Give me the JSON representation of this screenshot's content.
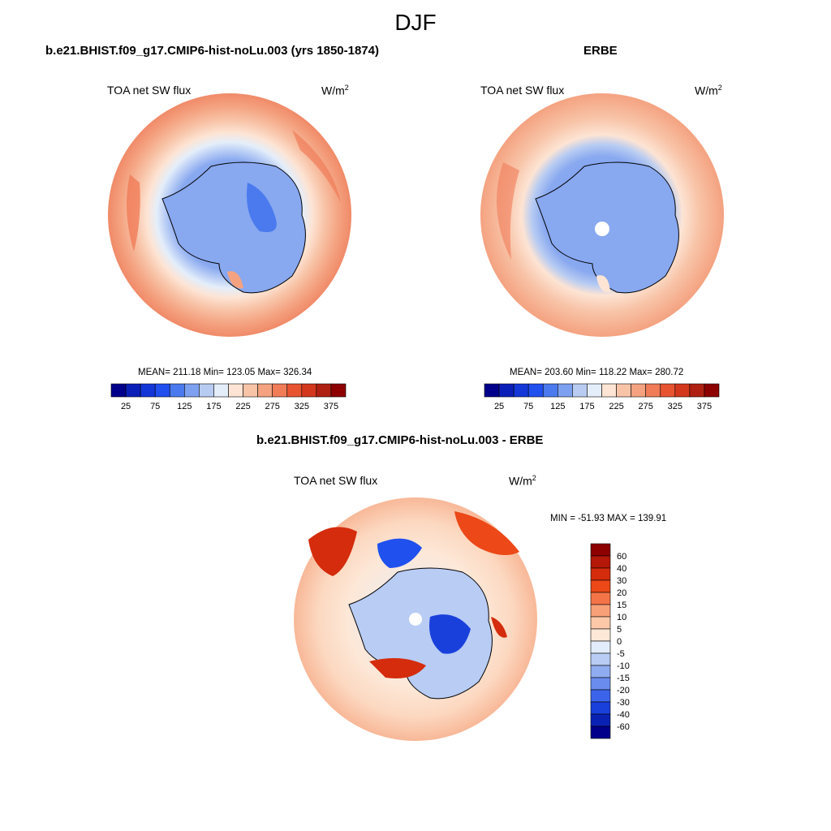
{
  "figure": {
    "title": "DJF"
  },
  "panels": [
    {
      "title": "b.e21.BHIST.f09_g17.CMIP6-hist-noLu.003 (yrs 1850-1874)",
      "left_label": "TOA net SW flux",
      "units_base": "W/m",
      "units_exp": "2",
      "stats": "MEAN= 211.18  Min= 123.05  Max= 326.34"
    },
    {
      "title": "ERBE",
      "left_label": "TOA net SW flux",
      "units_base": "W/m",
      "units_exp": "2",
      "stats": "MEAN= 203.60  Min= 118.22  Max= 280.72"
    },
    {
      "title": "b.e21.BHIST.f09_g17.CMIP6-hist-noLu.003 - ERBE",
      "left_label": "TOA net SW flux",
      "units_base": "W/m",
      "units_exp": "2",
      "stats": "MIN = -51.93 MAX = 139.91"
    }
  ],
  "colorbars": {
    "abs": {
      "colors": [
        "#00008b",
        "#0a1fb8",
        "#1438d8",
        "#2050ee",
        "#4a7aee",
        "#7da0f0",
        "#b8ccf2",
        "#e4eefa",
        "#fde4d4",
        "#f8c4a8",
        "#f4a280",
        "#f07c58",
        "#e85430",
        "#d4381c",
        "#b02010",
        "#8c0000"
      ],
      "labels": [
        "25",
        "75",
        "125",
        "175",
        "225",
        "275",
        "325",
        "375"
      ]
    },
    "diff": {
      "colors": [
        "#8c0000",
        "#b41808",
        "#d42c0c",
        "#ec4818",
        "#f47448",
        "#f8a078",
        "#fcc8a8",
        "#fde8d8",
        "#e2ecfa",
        "#b8ccf4",
        "#90acf0",
        "#6a8cee",
        "#3c64ea",
        "#1a40dc",
        "#0a22b4",
        "#00008b"
      ],
      "labels": [
        "60",
        "40",
        "30",
        "20",
        "15",
        "10",
        "5",
        "0",
        "-5",
        "-10",
        "-15",
        "-20",
        "-30",
        "-40",
        "-60"
      ]
    }
  },
  "colors": {
    "land_outline": "#000000",
    "pole_hole": "#ffffff"
  }
}
